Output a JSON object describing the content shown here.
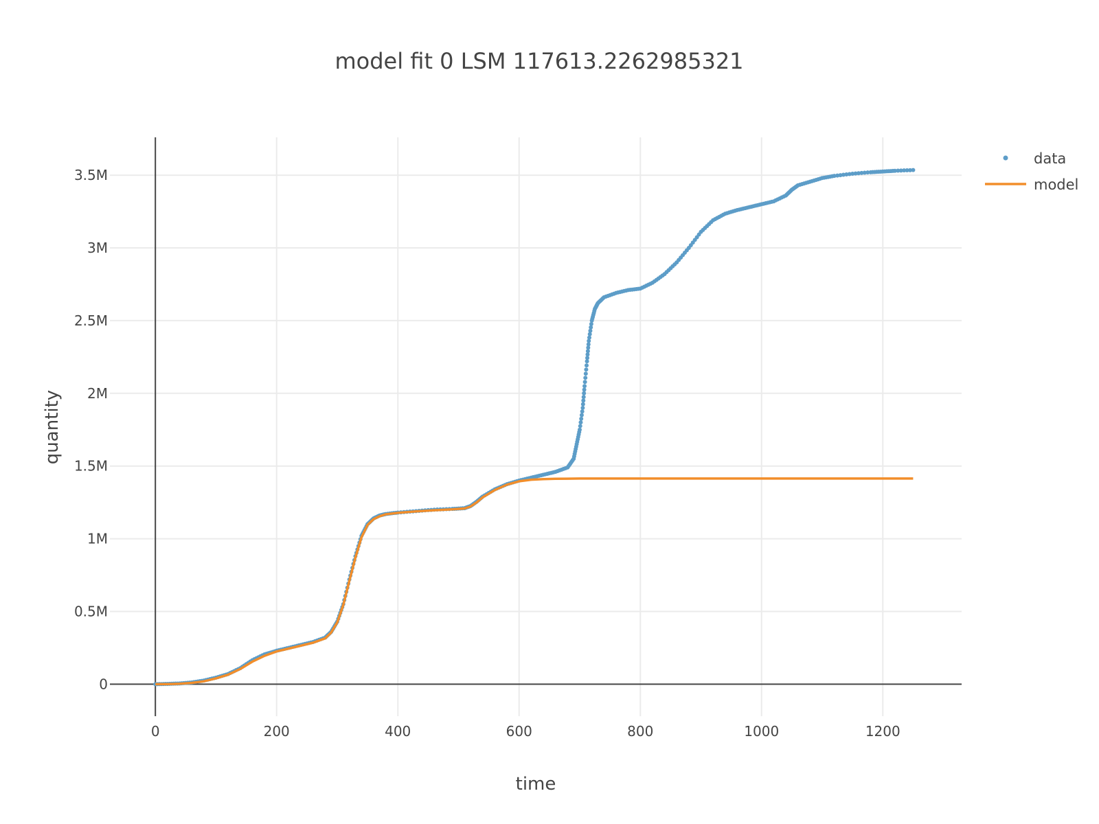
{
  "chart_data": {
    "type": "scatter",
    "title": "model fit 0   LSM 117613.2262985321",
    "xlabel": "time",
    "ylabel": "quantity",
    "xlim": [
      -75,
      1330
    ],
    "ylim": [
      -220000,
      3760000
    ],
    "x_ticks": [
      {
        "value": 0,
        "label": "0"
      },
      {
        "value": 200,
        "label": "200"
      },
      {
        "value": 400,
        "label": "400"
      },
      {
        "value": 600,
        "label": "600"
      },
      {
        "value": 800,
        "label": "800"
      },
      {
        "value": 1000,
        "label": "1000"
      },
      {
        "value": 1200,
        "label": "1200"
      }
    ],
    "y_ticks": [
      {
        "value": 0,
        "label": "0"
      },
      {
        "value": 500000,
        "label": "0.5M"
      },
      {
        "value": 1000000,
        "label": "1M"
      },
      {
        "value": 1500000,
        "label": "1.5M"
      },
      {
        "value": 2000000,
        "label": "2M"
      },
      {
        "value": 2500000,
        "label": "2.5M"
      },
      {
        "value": 3000000,
        "label": "3M"
      },
      {
        "value": 3500000,
        "label": "3.5M"
      }
    ],
    "grid": true,
    "legend_position": "top-right",
    "series": [
      {
        "name": "data",
        "mode": "markers",
        "color": "#5d9dc8",
        "x": [
          0,
          20,
          40,
          60,
          80,
          100,
          120,
          140,
          160,
          180,
          200,
          220,
          240,
          260,
          280,
          290,
          300,
          310,
          320,
          330,
          340,
          350,
          360,
          370,
          380,
          400,
          430,
          460,
          490,
          510,
          520,
          530,
          540,
          560,
          580,
          600,
          620,
          640,
          660,
          680,
          690,
          695,
          700,
          705,
          708,
          712,
          715,
          720,
          725,
          730,
          740,
          760,
          780,
          800,
          820,
          840,
          860,
          880,
          900,
          920,
          940,
          960,
          980,
          1000,
          1020,
          1040,
          1050,
          1060,
          1080,
          1100,
          1120,
          1150,
          1180,
          1200,
          1220,
          1250
        ],
        "y": [
          0,
          2000,
          5000,
          12000,
          25000,
          45000,
          70000,
          110000,
          165000,
          205000,
          230000,
          250000,
          270000,
          290000,
          320000,
          360000,
          430000,
          550000,
          720000,
          880000,
          1020000,
          1100000,
          1140000,
          1160000,
          1170000,
          1180000,
          1190000,
          1200000,
          1205000,
          1210000,
          1225000,
          1255000,
          1290000,
          1340000,
          1375000,
          1400000,
          1420000,
          1440000,
          1460000,
          1490000,
          1550000,
          1650000,
          1750000,
          1900000,
          2050000,
          2220000,
          2360000,
          2500000,
          2580000,
          2620000,
          2660000,
          2690000,
          2710000,
          2720000,
          2760000,
          2820000,
          2900000,
          3000000,
          3110000,
          3190000,
          3235000,
          3260000,
          3280000,
          3300000,
          3320000,
          3360000,
          3400000,
          3430000,
          3455000,
          3480000,
          3495000,
          3510000,
          3520000,
          3525000,
          3530000,
          3535000
        ]
      },
      {
        "name": "model",
        "mode": "lines",
        "color": "#f28e2b",
        "x": [
          0,
          20,
          40,
          60,
          80,
          100,
          120,
          140,
          160,
          180,
          200,
          220,
          240,
          260,
          280,
          290,
          300,
          310,
          320,
          330,
          340,
          350,
          360,
          370,
          380,
          400,
          430,
          460,
          490,
          510,
          520,
          530,
          540,
          560,
          580,
          600,
          620,
          640,
          660,
          680,
          700,
          750,
          800,
          900,
          1000,
          1100,
          1200,
          1250
        ],
        "y": [
          0,
          1000,
          3000,
          9000,
          20000,
          40000,
          65000,
          105000,
          155000,
          195000,
          225000,
          245000,
          265000,
          285000,
          315000,
          355000,
          425000,
          545000,
          710000,
          870000,
          1010000,
          1095000,
          1135000,
          1155000,
          1168000,
          1178000,
          1188000,
          1196000,
          1202000,
          1208000,
          1222000,
          1250000,
          1285000,
          1335000,
          1372000,
          1395000,
          1406000,
          1410000,
          1412000,
          1413000,
          1414000,
          1414000,
          1414000,
          1414000,
          1414000,
          1414000,
          1414000,
          1414000
        ]
      }
    ]
  }
}
